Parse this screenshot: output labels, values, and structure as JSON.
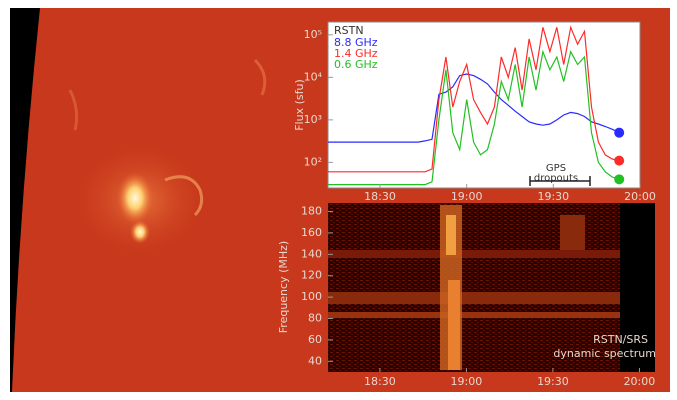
{
  "chart_data": [
    {
      "type": "line",
      "ylabel": "Flux (sfu)",
      "legend_title": "RSTN",
      "yscale": "log",
      "x": [
        18.2,
        18.24,
        18.28,
        18.32,
        18.36,
        18.4,
        18.44,
        18.48,
        18.52,
        18.56,
        18.6,
        18.64,
        18.68,
        18.72,
        18.76,
        18.8,
        18.84,
        18.88,
        18.92,
        18.96,
        19.0,
        19.04,
        19.08,
        19.12,
        19.16,
        19.2,
        19.24,
        19.28,
        19.32,
        19.36,
        19.4,
        19.44,
        19.48,
        19.52,
        19.56,
        19.6,
        19.64,
        19.68,
        19.72,
        19.76,
        19.8,
        19.84,
        19.88
      ],
      "series": [
        {
          "name": "8.8 GHz",
          "color": "#2a2aff",
          "values": [
            300,
            300,
            300,
            300,
            300,
            300,
            300,
            300,
            300,
            300,
            300,
            300,
            300,
            300,
            320,
            350,
            4000,
            4500,
            6000,
            11000,
            12000,
            11000,
            9000,
            7000,
            4500,
            3000,
            2200,
            1600,
            1200,
            900,
            800,
            750,
            800,
            1000,
            1300,
            1500,
            1400,
            1200,
            900,
            800,
            700,
            600,
            500
          ]
        },
        {
          "name": "1.4 GHz",
          "color": "#ff2a2a",
          "values": [
            60,
            60,
            60,
            60,
            60,
            60,
            60,
            60,
            60,
            60,
            60,
            60,
            60,
            60,
            60,
            70,
            3000,
            30000,
            2000,
            8000,
            20000,
            3000,
            1500,
            800,
            2000,
            30000,
            10000,
            50000,
            5000,
            80000,
            15000,
            150000,
            40000,
            150000,
            20000,
            150000,
            60000,
            120000,
            2000,
            300,
            150,
            120,
            110
          ]
        },
        {
          "name": "0.6 GHz",
          "color": "#22c022",
          "values": [
            30,
            30,
            30,
            30,
            30,
            30,
            30,
            30,
            30,
            30,
            30,
            30,
            30,
            30,
            30,
            35,
            1000,
            15000,
            500,
            200,
            3000,
            300,
            150,
            200,
            800,
            8000,
            3000,
            20000,
            2000,
            30000,
            5000,
            40000,
            15000,
            30000,
            8000,
            40000,
            20000,
            30000,
            500,
            100,
            60,
            45,
            40
          ]
        }
      ],
      "annotation": [
        "GPS",
        "dropouts"
      ],
      "xlim": [
        18.2,
        20.0
      ],
      "xticks": [
        {
          "value": 18.5,
          "label": "18:30"
        },
        {
          "value": 19.0,
          "label": "19:00"
        },
        {
          "value": 19.5,
          "label": "19:30"
        },
        {
          "value": 20.0,
          "label": "20:00"
        }
      ],
      "ylim": [
        25,
        200000
      ],
      "yticks": [
        {
          "value": 100,
          "label": "10²"
        },
        {
          "value": 1000,
          "label": "10³"
        },
        {
          "value": 10000,
          "label": "10⁴"
        },
        {
          "value": 100000,
          "label": "10⁵"
        }
      ]
    },
    {
      "type": "spectrogram",
      "ylabel": "Frequency (MHz)",
      "annotation": [
        "RSTN/SRS",
        "dynamic spectrum"
      ],
      "xlim": [
        18.2,
        20.09
      ],
      "xticks": [
        {
          "value": 18.5,
          "label": "18:30"
        },
        {
          "value": 19.0,
          "label": "19:00"
        },
        {
          "value": 19.5,
          "label": "19:30"
        },
        {
          "value": 20.0,
          "label": "20:00"
        }
      ],
      "ylim": [
        30,
        188
      ],
      "yticks": [
        40,
        60,
        80,
        100,
        120,
        140,
        160,
        180
      ]
    }
  ]
}
